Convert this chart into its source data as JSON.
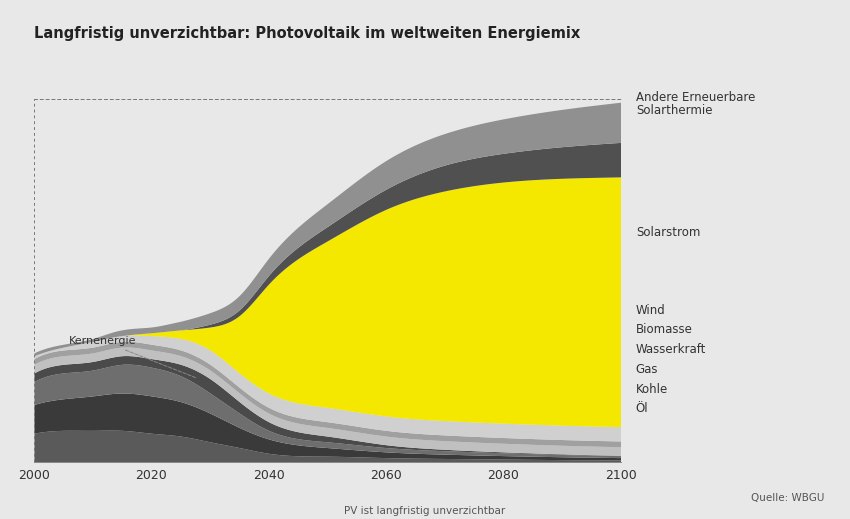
{
  "title": "Langfristig unverzichtbar: Photovoltaik im weltweiten Energiemix",
  "subtitle": "PV ist langfristig unverzichtbar",
  "source": "Quelle: WBGU",
  "background_color": "#e8e8e8",
  "years": [
    2000,
    2005,
    2010,
    2015,
    2020,
    2025,
    2030,
    2035,
    2040,
    2050,
    2060,
    2070,
    2080,
    2090,
    2100
  ],
  "series": {
    "Öl": [
      10,
      11,
      11,
      11,
      10,
      9,
      7,
      5,
      3,
      2,
      1.5,
      1.2,
      1.0,
      0.8,
      0.7
    ],
    "Kohle": [
      10,
      11,
      12,
      13,
      13,
      12,
      10,
      7,
      5,
      3,
      2,
      1.5,
      1.2,
      1.0,
      0.8
    ],
    "Gas": [
      8,
      9,
      9,
      10,
      10,
      9,
      7,
      5,
      3,
      2,
      1.5,
      1.2,
      1.0,
      0.8,
      0.7
    ],
    "Kernenergie": [
      3,
      3,
      3,
      3,
      3,
      4,
      5,
      4,
      3,
      2,
      1,
      0.5,
      0.3,
      0.2,
      0.1
    ],
    "Wasserkraft": [
      3,
      3,
      3,
      3,
      3,
      3,
      3,
      3,
      3,
      3,
      3,
      3,
      3,
      3,
      3
    ],
    "Biomasse": [
      2,
      2,
      2,
      2,
      2,
      2,
      2,
      2,
      2,
      2,
      2,
      2,
      2,
      2,
      2
    ],
    "Wind": [
      1,
      1,
      2,
      2,
      3,
      4,
      5,
      5,
      5,
      5,
      5,
      5,
      5,
      5,
      5
    ],
    "Solarstrom": [
      0,
      0,
      0,
      0,
      1,
      3,
      8,
      20,
      38,
      58,
      72,
      80,
      84,
      86,
      87
    ],
    "Solarthermie": [
      0,
      0,
      0,
      0,
      0,
      0,
      1,
      2,
      3,
      5,
      7,
      9,
      10,
      11,
      12
    ],
    "Andere Erneuerbare": [
      1,
      1,
      1,
      2,
      2,
      3,
      4,
      5,
      6,
      8,
      10,
      11,
      12,
      13,
      14
    ]
  },
  "colors": {
    "Öl": "#5a5a5a",
    "Kohle": "#3a3a3a",
    "Gas": "#6e6e6e",
    "Kernenergie": "#4a4a4a",
    "Wasserkraft": "#c0c0c0",
    "Biomasse": "#a0a0a0",
    "Wind": "#d0d0d0",
    "Solarstrom": "#f5e800",
    "Solarthermie": "#505050",
    "Andere Erneuerbare": "#909090"
  },
  "stack_order": [
    "Öl",
    "Kohle",
    "Gas",
    "Kernenergie",
    "Wasserkraft",
    "Biomasse",
    "Wind",
    "Solarstrom",
    "Solarthermie",
    "Andere Erneuerbare"
  ],
  "xticks": [
    2000,
    2020,
    2040,
    2060,
    2080,
    2100
  ],
  "kernenergie_annotation": "Kernenergie",
  "legend_top1": "Andere Erneuerbare",
  "legend_top2": "Solarthermie",
  "legend_mid": "Solarstrom",
  "legend_bottom": [
    "Wind",
    "Biomasse",
    "Wasserkraft",
    "Gas",
    "Kohle",
    "Öl"
  ]
}
